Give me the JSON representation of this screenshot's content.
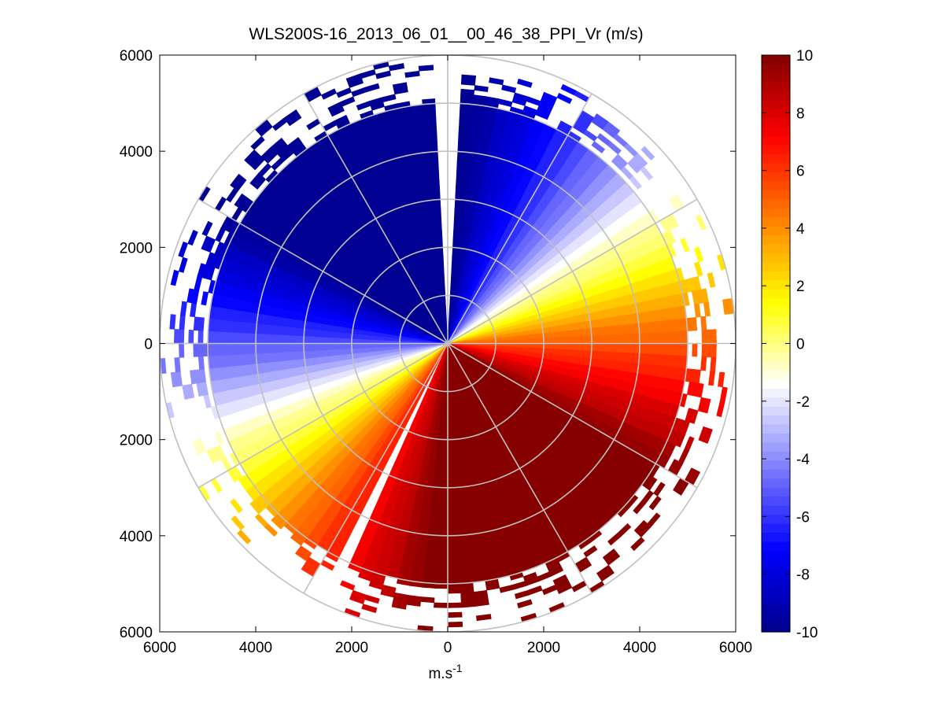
{
  "chart_data": {
    "type": "heatmap",
    "subtype": "polar-ppi",
    "title": "WLS200S-16_2013_06_01__00_46_38_PPI_Vr (m/s)",
    "xlabel": "m.s",
    "xlabel_superscript": "-1",
    "ylabel": "",
    "xlim": [
      -6000,
      6000
    ],
    "ylim": [
      -6000,
      6000
    ],
    "xtick_values": [
      -6000,
      -4000,
      -2000,
      0,
      2000,
      4000,
      6000
    ],
    "xtick_labels": [
      "6000",
      "4000",
      "2000",
      "0",
      "2000",
      "4000",
      "6000"
    ],
    "ytick_values": [
      6000,
      4000,
      2000,
      0,
      -2000,
      -4000,
      -6000
    ],
    "ytick_labels": [
      "6000",
      "4000",
      "2000",
      "0",
      "2000",
      "4000",
      "6000"
    ],
    "max_range_m": 6000,
    "valid_range_m": 5000,
    "range_rings_m": [
      1000,
      2000,
      3000,
      4000,
      5000,
      6000
    ],
    "spokes_deg": [
      0,
      30,
      60,
      90,
      120,
      150,
      180,
      210,
      240,
      270,
      300,
      330
    ],
    "colorbar": {
      "min": -10,
      "max": 10,
      "ticks": [
        10,
        8,
        6,
        4,
        2,
        0,
        -2,
        -4,
        -6,
        -8,
        -10
      ],
      "tick_labels": [
        "10",
        "8",
        "6",
        "4",
        "2",
        "0",
        "-2",
        "-4",
        "-6",
        "-8",
        "-10"
      ],
      "steps": 64,
      "colormap": "blue-white-red",
      "anchor_colors": [
        "#00008c",
        "#0000ff",
        "#7f7fff",
        "#ffffff",
        "#ffff00",
        "#ff8000",
        "#ff0000",
        "#800000"
      ]
    },
    "field": {
      "model": "radial velocity = 10 * sin(azimuth - zero_line_azimuth), clipped to [-10, 10]",
      "zero_line_azimuth_deg": 63,
      "amplitude_ms": 10,
      "data_gaps_azimuth_deg": [
        [
          -1.5,
          1.5
        ],
        [
          204,
          208
        ]
      ]
    },
    "regions": [
      {
        "azimuth_deg": [
          283,
          355
        ],
        "velocity_ms": -10,
        "label": "north-west sector, strong negative"
      },
      {
        "azimuth_deg": [
          5,
          60
        ],
        "velocity_ms": -5,
        "label": "north-east sector, weakening negative"
      },
      {
        "azimuth_deg": [
          62,
          66
        ],
        "velocity_ms": 0,
        "label": "shear zero line"
      },
      {
        "azimuth_deg": [
          70,
          100
        ],
        "velocity_ms": 4,
        "label": "east, increasing positive"
      },
      {
        "azimuth_deg": [
          110,
          200
        ],
        "velocity_ms": 10,
        "label": "south, strong positive"
      },
      {
        "azimuth_deg": [
          240,
          250
        ],
        "velocity_ms": 0,
        "label": "south-west zero line"
      }
    ]
  }
}
